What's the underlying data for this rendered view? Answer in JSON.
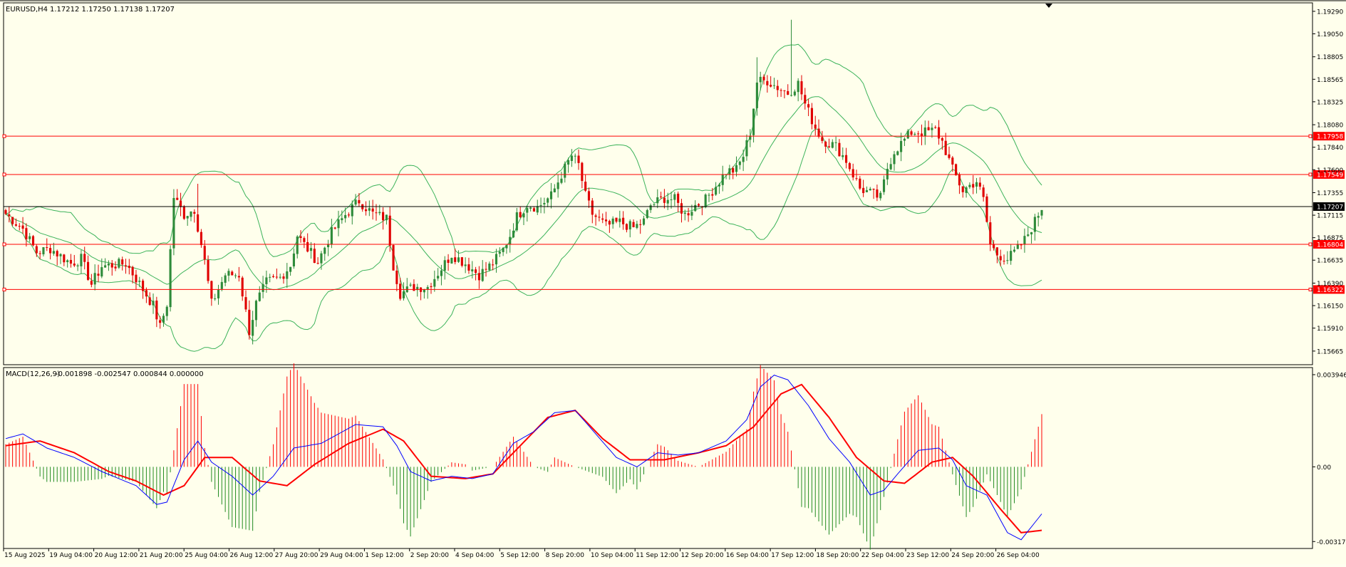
{
  "header": {
    "symbol": "EURUSD,H4",
    "ohlc": "1.17212 1.17250 1.17138 1.17207"
  },
  "macd_header": {
    "label": "MACD(12,26,9)",
    "values": "-0.001898 -0.002547 0.000844 0.000000"
  },
  "colors": {
    "background": "#ffffec",
    "bull_candle": "#2e8b3a",
    "bear_candle": "#e00000",
    "bollinger": "#3cb35a",
    "level_line": "#ff0000",
    "current_price_line": "#000000",
    "macd_main": "#0000ff",
    "macd_signal": "#ff0000",
    "hist_up": "#ff0000",
    "hist_down": "#228b22"
  },
  "chart_data": [
    {
      "type": "candlestick",
      "name": "EURUSD,H4",
      "ylim": [
        1.1555,
        1.1935
      ],
      "y_ticks": [
        "1.19290",
        "1.19050",
        "1.18805",
        "1.18565",
        "1.18325",
        "1.18080",
        "1.17840",
        "1.17600",
        "1.17355",
        "1.17115",
        "1.16875",
        "1.16635",
        "1.16390",
        "1.16150",
        "1.15910",
        "1.15665"
      ],
      "x_labels": [
        "15 Aug 2025",
        "19 Aug 04:00",
        "20 Aug 12:00",
        "21 Aug 20:00",
        "25 Aug 04:00",
        "26 Aug 12:00",
        "27 Aug 20:00",
        "29 Aug 04:00",
        "1 Sep 12:00",
        "2 Sep 20:00",
        "4 Sep 04:00",
        "5 Sep 12:00",
        "8 Sep 20:00",
        "10 Sep 04:00",
        "11 Sep 12:00",
        "12 Sep 20:00",
        "16 Sep 04:00",
        "17 Sep 12:00",
        "18 Sep 20:00",
        "22 Sep 04:00",
        "23 Sep 12:00",
        "24 Sep 20:00",
        "26 Sep 04:00"
      ],
      "price_levels": [
        "1.17958",
        "1.17549",
        "1.16804",
        "1.16322"
      ],
      "current_price": "1.17207",
      "close_path": [
        [
          0,
          1.1713
        ],
        [
          5,
          1.1697
        ],
        [
          9,
          1.1672
        ],
        [
          13,
          1.1676
        ],
        [
          19,
          1.166
        ],
        [
          22,
          1.1665
        ],
        [
          25,
          1.1638
        ],
        [
          28,
          1.1657
        ],
        [
          35,
          1.166
        ],
        [
          38,
          1.1644
        ],
        [
          43,
          1.1615
        ],
        [
          45,
          1.1592
        ],
        [
          47,
          1.1617
        ],
        [
          49,
          1.1731
        ],
        [
          52,
          1.1712
        ],
        [
          55,
          1.1718
        ],
        [
          58,
          1.1662
        ],
        [
          60,
          1.1617
        ],
        [
          64,
          1.1648
        ],
        [
          68,
          1.1648
        ],
        [
          71,
          1.1588
        ],
        [
          73,
          1.1617
        ],
        [
          76,
          1.164
        ],
        [
          80,
          1.1645
        ],
        [
          83,
          1.1658
        ],
        [
          85,
          1.169
        ],
        [
          87,
          1.168
        ],
        [
          91,
          1.1662
        ],
        [
          95,
          1.1693
        ],
        [
          99,
          1.1712
        ],
        [
          103,
          1.1727
        ],
        [
          107,
          1.1713
        ],
        [
          111,
          1.1708
        ],
        [
          113,
          1.1658
        ],
        [
          115,
          1.1628
        ],
        [
          119,
          1.1635
        ],
        [
          123,
          1.1635
        ],
        [
          126,
          1.165
        ],
        [
          130,
          1.167
        ],
        [
          134,
          1.166
        ],
        [
          138,
          1.1648
        ],
        [
          142,
          1.166
        ],
        [
          145,
          1.1675
        ],
        [
          147,
          1.169
        ],
        [
          149,
          1.171
        ],
        [
          152,
          1.1723
        ],
        [
          155,
          1.172
        ],
        [
          159,
          1.1732
        ],
        [
          162,
          1.1755
        ],
        [
          165,
          1.1775
        ],
        [
          167,
          1.1765
        ],
        [
          169,
          1.1732
        ],
        [
          171,
          1.1713
        ],
        [
          175,
          1.17
        ],
        [
          179,
          1.1704
        ],
        [
          183,
          1.1698
        ],
        [
          186,
          1.1705
        ],
        [
          188,
          1.1722
        ],
        [
          192,
          1.173
        ],
        [
          195,
          1.1728
        ],
        [
          198,
          1.1712
        ],
        [
          201,
          1.1722
        ],
        [
          204,
          1.1728
        ],
        [
          207,
          1.1743
        ],
        [
          210,
          1.1758
        ],
        [
          213,
          1.176
        ],
        [
          215,
          1.1775
        ],
        [
          217,
          1.18
        ],
        [
          219,
          1.1854
        ],
        [
          222,
          1.1855
        ],
        [
          225,
          1.1848
        ],
        [
          228,
          1.1842
        ],
        [
          231,
          1.1852
        ],
        [
          233,
          1.183
        ],
        [
          236,
          1.1805
        ],
        [
          238,
          1.1792
        ],
        [
          242,
          1.1785
        ],
        [
          245,
          1.177
        ],
        [
          247,
          1.1755
        ],
        [
          249,
          1.174
        ],
        [
          252,
          1.1735
        ],
        [
          255,
          1.173
        ],
        [
          257,
          1.1762
        ],
        [
          259,
          1.178
        ],
        [
          262,
          1.1792
        ],
        [
          264,
          1.18
        ],
        [
          268,
          1.18
        ],
        [
          271,
          1.1802
        ],
        [
          273,
          1.179
        ],
        [
          276,
          1.176
        ],
        [
          279,
          1.1738
        ],
        [
          283,
          1.1748
        ],
        [
          285,
          1.1728
        ],
        [
          287,
          1.168
        ],
        [
          289,
          1.167
        ],
        [
          292,
          1.1665
        ],
        [
          295,
          1.1675
        ],
        [
          297,
          1.1685
        ],
        [
          300,
          1.1705
        ],
        [
          302,
          1.172
        ]
      ]
    },
    {
      "type": "macd",
      "name": "MACD(12,26,9)",
      "ylim": [
        -0.00335,
        0.0041
      ],
      "y_ticks": [
        "0.003946",
        "0.00",
        "-0.003176"
      ],
      "main": [
        [
          0,
          0.0012
        ],
        [
          5,
          0.0014
        ],
        [
          12,
          0.0008
        ],
        [
          20,
          0.0004
        ],
        [
          28,
          -0.0002
        ],
        [
          38,
          -0.0008
        ],
        [
          44,
          -0.0016
        ],
        [
          47,
          -0.0015
        ],
        [
          52,
          0.0003
        ],
        [
          56,
          0.0011
        ],
        [
          60,
          0.0002
        ],
        [
          66,
          -0.0004
        ],
        [
          72,
          -0.0012
        ],
        [
          78,
          -0.0004
        ],
        [
          84,
          0.0008
        ],
        [
          92,
          0.001
        ],
        [
          102,
          0.0018
        ],
        [
          110,
          0.0017
        ],
        [
          114,
          0.0009
        ],
        [
          118,
          -0.0002
        ],
        [
          124,
          -0.0006
        ],
        [
          130,
          -0.0004
        ],
        [
          136,
          -0.0005
        ],
        [
          142,
          -0.0003
        ],
        [
          148,
          0.001
        ],
        [
          154,
          0.0015
        ],
        [
          160,
          0.0023
        ],
        [
          166,
          0.0024
        ],
        [
          172,
          0.0014
        ],
        [
          178,
          0.0004
        ],
        [
          184,
          0.0
        ],
        [
          190,
          0.0006
        ],
        [
          196,
          0.0005
        ],
        [
          202,
          0.0006
        ],
        [
          210,
          0.0011
        ],
        [
          216,
          0.002
        ],
        [
          220,
          0.0034
        ],
        [
          224,
          0.0039
        ],
        [
          228,
          0.0037
        ],
        [
          234,
          0.0026
        ],
        [
          240,
          0.0012
        ],
        [
          246,
          0.0002
        ],
        [
          252,
          -0.0012
        ],
        [
          256,
          -0.001
        ],
        [
          260,
          -0.0003
        ],
        [
          266,
          0.0007
        ],
        [
          272,
          0.0008
        ],
        [
          276,
          0.0003
        ],
        [
          280,
          -0.0008
        ],
        [
          286,
          -0.0012
        ],
        [
          292,
          -0.0028
        ],
        [
          296,
          -0.0031
        ],
        [
          302,
          -0.002
        ]
      ],
      "signal": [
        [
          0,
          0.0009
        ],
        [
          10,
          0.0011
        ],
        [
          20,
          0.0006
        ],
        [
          30,
          -0.0002
        ],
        [
          38,
          -0.0006
        ],
        [
          46,
          -0.0012
        ],
        [
          52,
          -0.0008
        ],
        [
          58,
          0.0004
        ],
        [
          66,
          0.0004
        ],
        [
          74,
          -0.0006
        ],
        [
          82,
          -0.0008
        ],
        [
          90,
          0.0001
        ],
        [
          100,
          0.001
        ],
        [
          110,
          0.0016
        ],
        [
          116,
          0.0011
        ],
        [
          124,
          -0.0004
        ],
        [
          134,
          -0.0005
        ],
        [
          142,
          -0.0003
        ],
        [
          150,
          0.0009
        ],
        [
          158,
          0.0021
        ],
        [
          166,
          0.0024
        ],
        [
          174,
          0.0012
        ],
        [
          182,
          0.0003
        ],
        [
          192,
          0.0003
        ],
        [
          202,
          0.0006
        ],
        [
          210,
          0.0009
        ],
        [
          218,
          0.0017
        ],
        [
          226,
          0.0031
        ],
        [
          232,
          0.0035
        ],
        [
          240,
          0.0021
        ],
        [
          248,
          0.0004
        ],
        [
          256,
          -0.0006
        ],
        [
          262,
          -0.0007
        ],
        [
          270,
          0.0002
        ],
        [
          276,
          0.0004
        ],
        [
          282,
          -0.0004
        ],
        [
          290,
          -0.0018
        ],
        [
          296,
          -0.0028
        ],
        [
          302,
          -0.0027
        ]
      ]
    }
  ]
}
